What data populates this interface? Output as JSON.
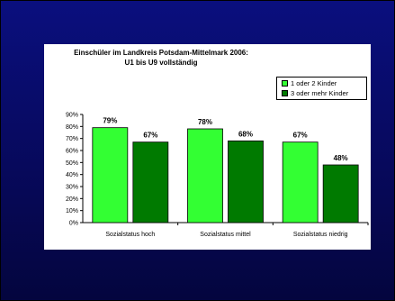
{
  "chart_data": {
    "type": "bar",
    "title_lines": [
      "Einschüler im Landkreis Potsdam-Mittelmark 2006:",
      "U1 bis U9 vollständig"
    ],
    "categories": [
      "Sozialstatus hoch",
      "Sozialstatus mittel",
      "Sozialstatus niedrig"
    ],
    "series": [
      {
        "name": "1 oder 2 Kinder",
        "values": [
          79,
          78,
          67
        ],
        "labels": [
          "79%",
          "78%",
          "67%"
        ],
        "color": "#33ff33"
      },
      {
        "name": "3 oder mehr Kinder",
        "values": [
          67,
          68,
          48
        ],
        "labels": [
          "67%",
          "68%",
          "48%"
        ],
        "color": "#007a00"
      }
    ],
    "y_ticks": [
      "0%",
      "10%",
      "20%",
      "30%",
      "40%",
      "50%",
      "60%",
      "70%",
      "80%",
      "90%"
    ],
    "ylim": [
      0,
      90
    ],
    "grid": false,
    "legend_position": "top-right",
    "background": "#000a7a"
  }
}
